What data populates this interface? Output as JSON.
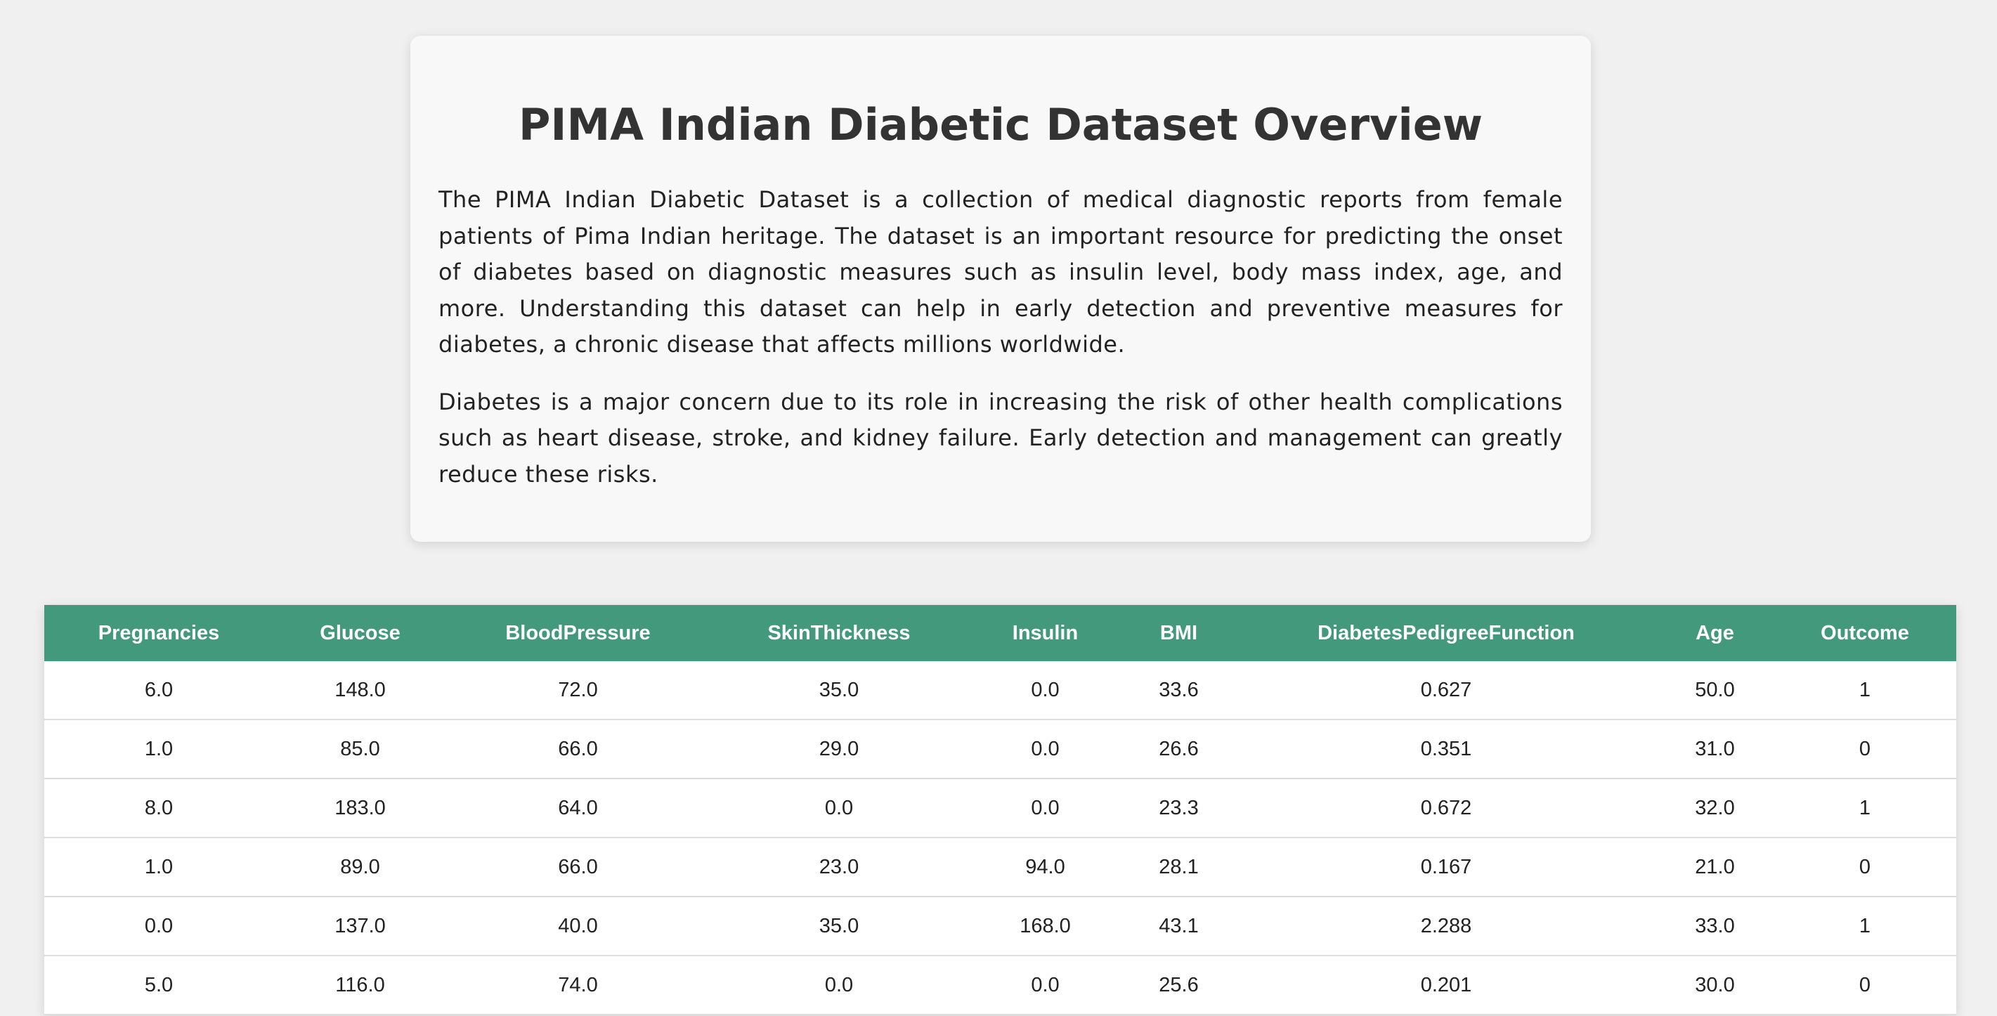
{
  "header": {
    "title": "PIMA Indian Diabetic Dataset Overview",
    "paragraphs": [
      "The PIMA Indian Diabetic Dataset is a collection of medical diagnostic reports from female patients of Pima Indian heritage. The dataset is an important resource for predicting the onset of diabetes based on diagnostic measures such as insulin level, body mass index, age, and more. Understanding this dataset can help in early detection and preventive measures for diabetes, a chronic disease that affects millions worldwide.",
      "Diabetes is a major concern due to its role in increasing the risk of other health complications such as heart disease, stroke, and kidney failure. Early detection and management can greatly reduce these risks."
    ]
  },
  "table": {
    "columns": [
      "Pregnancies",
      "Glucose",
      "BloodPressure",
      "SkinThickness",
      "Insulin",
      "BMI",
      "DiabetesPedigreeFunction",
      "Age",
      "Outcome"
    ],
    "rows": [
      [
        "6.0",
        "148.0",
        "72.0",
        "35.0",
        "0.0",
        "33.6",
        "0.627",
        "50.0",
        "1"
      ],
      [
        "1.0",
        "85.0",
        "66.0",
        "29.0",
        "0.0",
        "26.6",
        "0.351",
        "31.0",
        "0"
      ],
      [
        "8.0",
        "183.0",
        "64.0",
        "0.0",
        "0.0",
        "23.3",
        "0.672",
        "32.0",
        "1"
      ],
      [
        "1.0",
        "89.0",
        "66.0",
        "23.0",
        "94.0",
        "28.1",
        "0.167",
        "21.0",
        "0"
      ],
      [
        "0.0",
        "137.0",
        "40.0",
        "35.0",
        "168.0",
        "43.1",
        "2.288",
        "33.0",
        "1"
      ],
      [
        "5.0",
        "116.0",
        "74.0",
        "0.0",
        "0.0",
        "25.6",
        "0.201",
        "30.0",
        "0"
      ]
    ]
  }
}
